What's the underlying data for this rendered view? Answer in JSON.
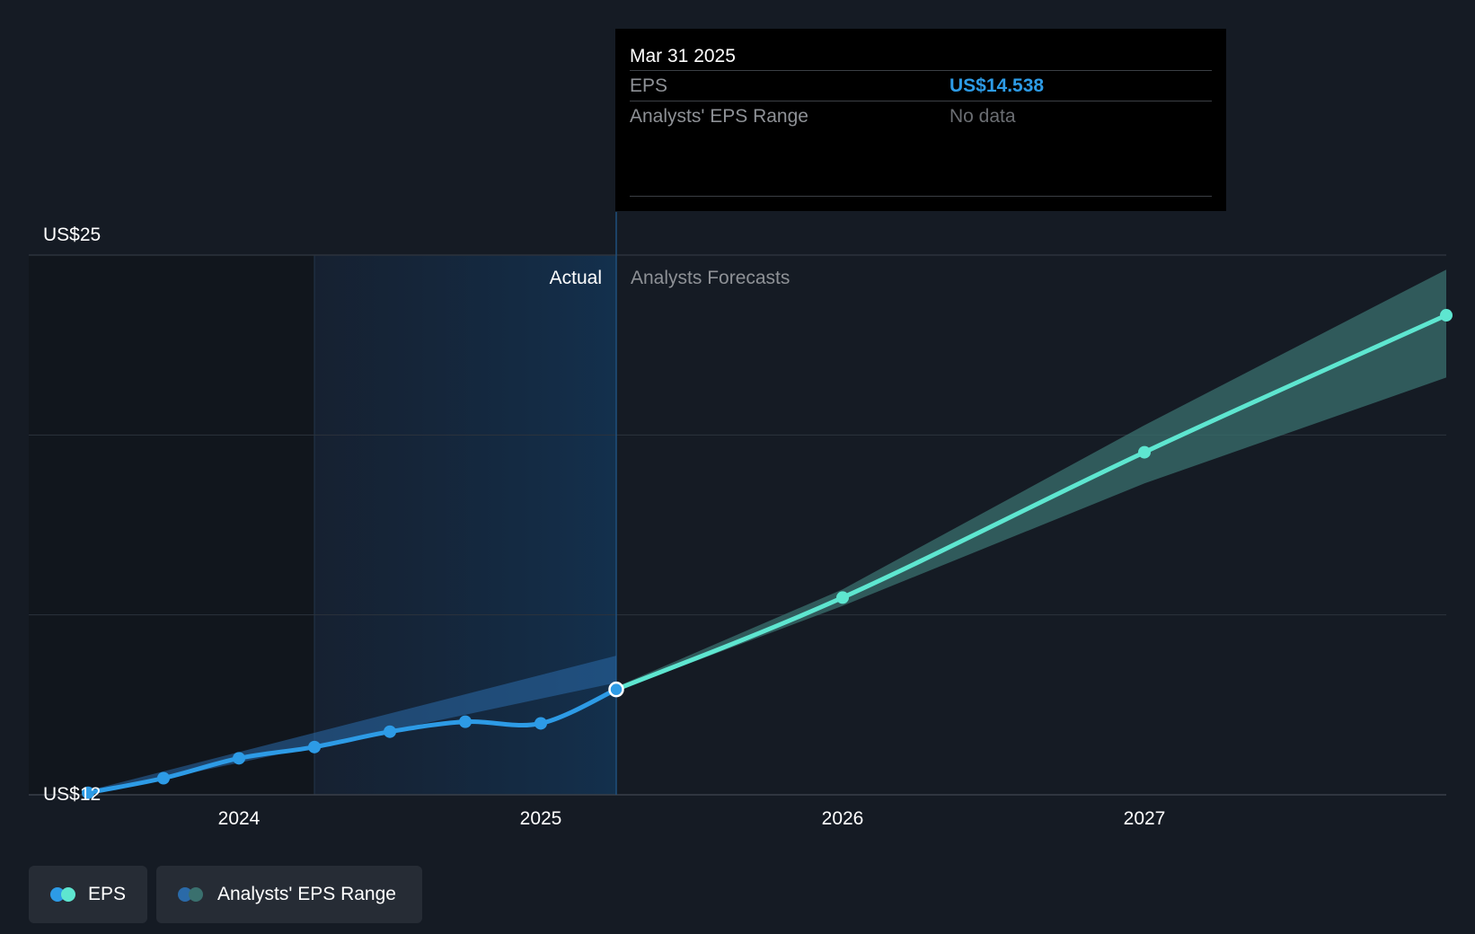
{
  "chart_data": {
    "type": "line",
    "title": "",
    "xlabel": "",
    "ylabel": "",
    "ylim": [
      12,
      25
    ],
    "y_ticks": [
      {
        "value": 25,
        "label": "US$25"
      },
      {
        "value": 12,
        "label": "US$12"
      }
    ],
    "x_ticks": [
      {
        "value": 2024.0,
        "label": "2024"
      },
      {
        "value": 2025.0,
        "label": "2025"
      },
      {
        "value": 2026.0,
        "label": "2026"
      },
      {
        "value": 2027.0,
        "label": "2027"
      }
    ],
    "region_labels": {
      "actual": "Actual",
      "forecast": "Analysts Forecasts"
    },
    "split_x": 2025.25,
    "series": [
      {
        "name": "EPS",
        "role": "actual",
        "color": "#2d9be6",
        "points": [
          {
            "x": 2023.5,
            "y": 12.05
          },
          {
            "x": 2023.75,
            "y": 12.4
          },
          {
            "x": 2024.0,
            "y": 12.88
          },
          {
            "x": 2024.25,
            "y": 13.15
          },
          {
            "x": 2024.5,
            "y": 13.52
          },
          {
            "x": 2024.75,
            "y": 13.76
          },
          {
            "x": 2025.0,
            "y": 13.72
          },
          {
            "x": 2025.25,
            "y": 14.538
          }
        ]
      },
      {
        "name": "EPS",
        "role": "forecast",
        "color": "#5ee6d0",
        "points": [
          {
            "x": 2025.25,
            "y": 14.538
          },
          {
            "x": 2026.0,
            "y": 16.75
          },
          {
            "x": 2027.0,
            "y": 20.25
          },
          {
            "x": 2028.0,
            "y": 23.55
          }
        ]
      }
    ],
    "range_band": {
      "name": "Analysts' EPS Range",
      "actual_color": "#2a6aa8",
      "forecast_color": "#3a706e",
      "actual": [
        {
          "x": 2023.5,
          "low": 12.0,
          "high": 12.1
        },
        {
          "x": 2025.25,
          "low": 14.7,
          "high": 15.35
        }
      ],
      "forecast": [
        {
          "x": 2025.25,
          "low": 14.5,
          "high": 14.6
        },
        {
          "x": 2026.0,
          "low": 16.55,
          "high": 16.95
        },
        {
          "x": 2027.0,
          "low": 19.5,
          "high": 20.9
        },
        {
          "x": 2028.0,
          "low": 22.05,
          "high": 24.65
        }
      ]
    }
  },
  "tooltip": {
    "date": "Mar 31 2025",
    "rows": [
      {
        "key": "EPS",
        "value": "US$14.538"
      },
      {
        "key": "Analysts' EPS Range",
        "value": "No data"
      }
    ]
  },
  "legend": {
    "items": [
      {
        "label": "EPS",
        "colors": [
          "#2d9be6",
          "#5ee6d0"
        ]
      },
      {
        "label": "Analysts' EPS Range",
        "colors": [
          "#2a6aa8",
          "#3a706e"
        ]
      }
    ]
  }
}
